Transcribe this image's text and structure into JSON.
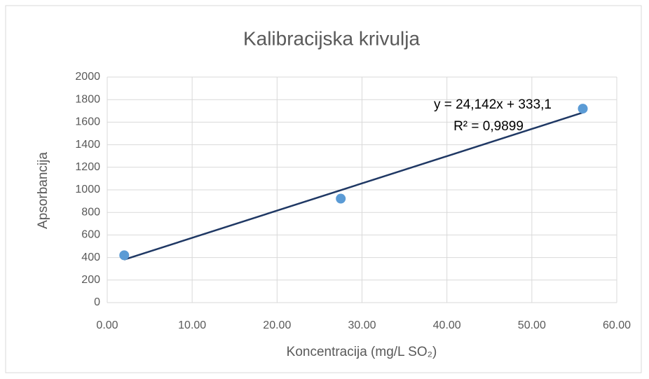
{
  "chart_data": {
    "type": "scatter",
    "title": "Kalibracijska krivulja",
    "x_label": "Koncentracija (mg/L SO₂)",
    "y_label": "Apsorbancija",
    "series": [
      {
        "name": "Apsorbancija",
        "color": "#5b9bd5",
        "x": [
          2,
          27.5,
          56
        ],
        "values": [
          420,
          922,
          1720
        ]
      }
    ],
    "trendline": {
      "color": "#1f3864",
      "slope": 24.142,
      "intercept": 333.1,
      "label": "y = 24,142x + 333,1",
      "r2_label": "R² = 0,9899"
    },
    "xlim": [
      0,
      60
    ],
    "xticks": [
      {
        "value": 0,
        "label": "0.00"
      },
      {
        "value": 10,
        "label": "10.00"
      },
      {
        "value": 20,
        "label": "20.00"
      },
      {
        "value": 30,
        "label": "30.00"
      },
      {
        "value": 40,
        "label": "40.00"
      },
      {
        "value": 50,
        "label": "50.00"
      },
      {
        "value": 60,
        "label": "60.00"
      }
    ],
    "ylim": [
      0,
      2000
    ],
    "yticks": [
      0,
      200,
      400,
      600,
      800,
      1000,
      1200,
      1400,
      1600,
      1800,
      2000
    ],
    "grid": true
  }
}
